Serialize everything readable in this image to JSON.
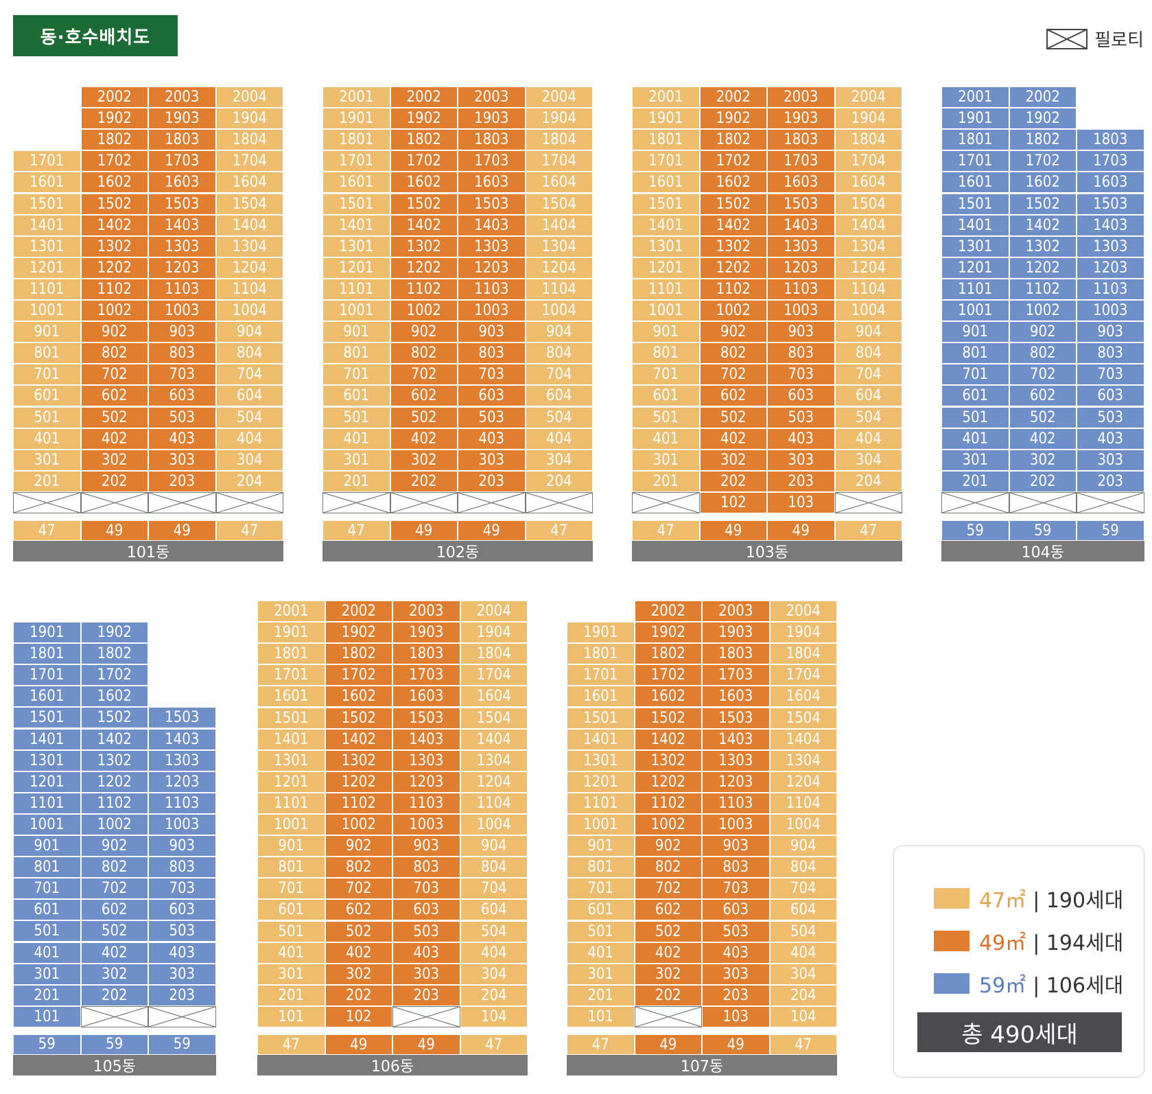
{
  "title": "동·호수배치도",
  "piloti_legend": {
    "label": "필로티"
  },
  "colors": {
    "47": "#edbc6c",
    "49": "#e07d2f",
    "59": "#6f8fc9",
    "label_bg": "#7a7a7a"
  },
  "buildings": [
    {
      "name": "101동",
      "area_row": [
        "47",
        "49",
        "49",
        "47"
      ],
      "columns": [
        {
          "type": "47",
          "units": [
            "",
            "",
            "",
            "1701",
            "1601",
            "1501",
            "1401",
            "1301",
            "1201",
            "1101",
            "1001",
            "901",
            "801",
            "701",
            "601",
            "501",
            "401",
            "301",
            "201",
            "P"
          ]
        },
        {
          "type": "49",
          "units": [
            "2002",
            "1902",
            "1802",
            "1702",
            "1602",
            "1502",
            "1402",
            "1302",
            "1202",
            "1102",
            "1002",
            "902",
            "802",
            "702",
            "602",
            "502",
            "402",
            "302",
            "202",
            "P"
          ]
        },
        {
          "type": "49",
          "units": [
            "2003",
            "1903",
            "1803",
            "1703",
            "1603",
            "1503",
            "1403",
            "1303",
            "1203",
            "1103",
            "1003",
            "903",
            "803",
            "703",
            "603",
            "503",
            "403",
            "303",
            "203",
            "P"
          ]
        },
        {
          "type": "47",
          "units": [
            "2004",
            "1904",
            "1804",
            "1704",
            "1604",
            "1504",
            "1404",
            "1304",
            "1204",
            "1104",
            "1004",
            "904",
            "804",
            "704",
            "604",
            "504",
            "404",
            "304",
            "204",
            "P"
          ]
        }
      ]
    },
    {
      "name": "102동",
      "area_row": [
        "47",
        "49",
        "49",
        "47"
      ],
      "columns": [
        {
          "type": "47",
          "units": [
            "2001",
            "1901",
            "1801",
            "1701",
            "1601",
            "1501",
            "1401",
            "1301",
            "1201",
            "1101",
            "1001",
            "901",
            "801",
            "701",
            "601",
            "501",
            "401",
            "301",
            "201",
            "P"
          ]
        },
        {
          "type": "49",
          "units": [
            "2002",
            "1902",
            "1802",
            "1702",
            "1602",
            "1502",
            "1402",
            "1302",
            "1202",
            "1102",
            "1002",
            "902",
            "802",
            "702",
            "602",
            "502",
            "402",
            "302",
            "202",
            "P"
          ]
        },
        {
          "type": "49",
          "units": [
            "2003",
            "1903",
            "1803",
            "1703",
            "1603",
            "1503",
            "1403",
            "1303",
            "1203",
            "1103",
            "1003",
            "903",
            "803",
            "703",
            "603",
            "503",
            "403",
            "303",
            "203",
            "P"
          ]
        },
        {
          "type": "47",
          "units": [
            "2004",
            "1904",
            "1804",
            "1704",
            "1604",
            "1504",
            "1404",
            "1304",
            "1204",
            "1104",
            "1004",
            "904",
            "804",
            "704",
            "604",
            "504",
            "404",
            "304",
            "204",
            "P"
          ]
        }
      ]
    },
    {
      "name": "103동",
      "area_row": [
        "47",
        "49",
        "49",
        "47"
      ],
      "columns": [
        {
          "type": "47",
          "units": [
            "2001",
            "1901",
            "1801",
            "1701",
            "1601",
            "1501",
            "1401",
            "1301",
            "1201",
            "1101",
            "1001",
            "901",
            "801",
            "701",
            "601",
            "501",
            "401",
            "301",
            "201",
            "P"
          ]
        },
        {
          "type": "49",
          "units": [
            "2002",
            "1902",
            "1802",
            "1702",
            "1602",
            "1502",
            "1402",
            "1302",
            "1202",
            "1102",
            "1002",
            "902",
            "802",
            "702",
            "602",
            "502",
            "402",
            "302",
            "202",
            "102"
          ]
        },
        {
          "type": "49",
          "units": [
            "2003",
            "1903",
            "1803",
            "1703",
            "1603",
            "1503",
            "1403",
            "1303",
            "1203",
            "1103",
            "1003",
            "903",
            "803",
            "703",
            "603",
            "503",
            "403",
            "303",
            "203",
            "103"
          ]
        },
        {
          "type": "47",
          "units": [
            "2004",
            "1904",
            "1804",
            "1704",
            "1604",
            "1504",
            "1404",
            "1304",
            "1204",
            "1104",
            "1004",
            "904",
            "804",
            "704",
            "604",
            "504",
            "404",
            "304",
            "204",
            "P"
          ]
        }
      ]
    },
    {
      "name": "104동",
      "area_row": [
        "59",
        "59",
        "59"
      ],
      "columns": [
        {
          "type": "59",
          "units": [
            "2001",
            "1901",
            "1801",
            "1701",
            "1601",
            "1501",
            "1401",
            "1301",
            "1201",
            "1101",
            "1001",
            "901",
            "801",
            "701",
            "601",
            "501",
            "401",
            "301",
            "201",
            "P"
          ]
        },
        {
          "type": "59",
          "units": [
            "2002",
            "1902",
            "1802",
            "1702",
            "1602",
            "1502",
            "1402",
            "1302",
            "1202",
            "1102",
            "1002",
            "902",
            "802",
            "702",
            "602",
            "502",
            "402",
            "302",
            "202",
            "P"
          ]
        },
        {
          "type": "59",
          "units": [
            "",
            "",
            "1803",
            "1703",
            "1603",
            "1503",
            "1403",
            "1303",
            "1203",
            "1103",
            "1003",
            "903",
            "803",
            "703",
            "603",
            "503",
            "403",
            "303",
            "203",
            "P"
          ]
        }
      ]
    },
    {
      "name": "105동",
      "area_row": [
        "59",
        "59",
        "59"
      ],
      "columns": [
        {
          "type": "59",
          "units": [
            "1901",
            "1801",
            "1701",
            "1601",
            "1501",
            "1401",
            "1301",
            "1201",
            "1101",
            "1001",
            "901",
            "801",
            "701",
            "601",
            "501",
            "401",
            "301",
            "201",
            "101"
          ]
        },
        {
          "type": "59",
          "units": [
            "1902",
            "1802",
            "1702",
            "1602",
            "1502",
            "1402",
            "1302",
            "1202",
            "1102",
            "1002",
            "902",
            "802",
            "702",
            "602",
            "502",
            "402",
            "302",
            "202",
            "P"
          ]
        },
        {
          "type": "59",
          "units": [
            "",
            "",
            "",
            "",
            "1503",
            "1403",
            "1303",
            "1203",
            "1103",
            "1003",
            "903",
            "803",
            "703",
            "603",
            "503",
            "403",
            "303",
            "203",
            "P"
          ]
        }
      ]
    },
    {
      "name": "106동",
      "area_row": [
        "47",
        "49",
        "49",
        "47"
      ],
      "columns": [
        {
          "type": "47",
          "units": [
            "2001",
            "1901",
            "1801",
            "1701",
            "1601",
            "1501",
            "1401",
            "1301",
            "1201",
            "1101",
            "1001",
            "901",
            "801",
            "701",
            "601",
            "501",
            "401",
            "301",
            "201",
            "101"
          ]
        },
        {
          "type": "49",
          "units": [
            "2002",
            "1902",
            "1802",
            "1702",
            "1602",
            "1502",
            "1402",
            "1302",
            "1202",
            "1102",
            "1002",
            "902",
            "802",
            "702",
            "602",
            "502",
            "402",
            "302",
            "202",
            "102"
          ]
        },
        {
          "type": "49",
          "units": [
            "2003",
            "1903",
            "1803",
            "1703",
            "1603",
            "1503",
            "1403",
            "1303",
            "1203",
            "1103",
            "1003",
            "903",
            "803",
            "703",
            "603",
            "503",
            "403",
            "303",
            "203",
            "P"
          ]
        },
        {
          "type": "47",
          "units": [
            "2004",
            "1904",
            "1804",
            "1704",
            "1604",
            "1504",
            "1404",
            "1304",
            "1204",
            "1104",
            "1004",
            "904",
            "804",
            "704",
            "604",
            "504",
            "404",
            "304",
            "204",
            "104"
          ]
        }
      ]
    },
    {
      "name": "107동",
      "area_row": [
        "47",
        "49",
        "49",
        "47"
      ],
      "columns": [
        {
          "type": "47",
          "units": [
            "",
            "1901",
            "1801",
            "1701",
            "1601",
            "1501",
            "1401",
            "1301",
            "1201",
            "1101",
            "1001",
            "901",
            "801",
            "701",
            "601",
            "501",
            "401",
            "301",
            "201",
            "101"
          ]
        },
        {
          "type": "49",
          "units": [
            "2002",
            "1902",
            "1802",
            "1702",
            "1602",
            "1502",
            "1402",
            "1302",
            "1202",
            "1102",
            "1002",
            "902",
            "802",
            "702",
            "602",
            "502",
            "402",
            "302",
            "202",
            "P"
          ]
        },
        {
          "type": "49",
          "units": [
            "2003",
            "1903",
            "1803",
            "1703",
            "1603",
            "1503",
            "1403",
            "1303",
            "1203",
            "1103",
            "1003",
            "903",
            "803",
            "703",
            "603",
            "503",
            "403",
            "303",
            "203",
            "103"
          ]
        },
        {
          "type": "47",
          "units": [
            "2004",
            "1904",
            "1804",
            "1704",
            "1604",
            "1504",
            "1404",
            "1304",
            "1204",
            "1104",
            "1004",
            "904",
            "804",
            "704",
            "604",
            "504",
            "404",
            "304",
            "204",
            "104"
          ]
        }
      ]
    }
  ],
  "legend": {
    "items": [
      {
        "area": "47㎡",
        "count": "| 190세대",
        "color": "#edbc6c",
        "text_color": "#e0a24a"
      },
      {
        "area": "49㎡",
        "count": "| 194세대",
        "color": "#e07d2f",
        "text_color": "#d8722a"
      },
      {
        "area": "59㎡",
        "count": "| 106세대",
        "color": "#6f8fc9",
        "text_color": "#5b7dc0"
      }
    ],
    "total": "총 490세대"
  }
}
